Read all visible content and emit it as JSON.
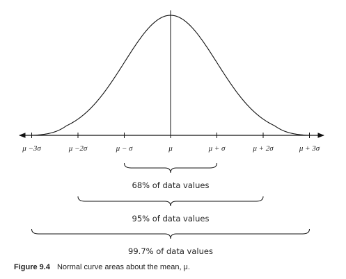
{
  "axis_labels": [
    "μ −3σ",
    "μ −2σ",
    "μ − σ",
    "μ",
    "μ + σ",
    "μ + 2σ",
    "μ + 3σ"
  ],
  "brackets": [
    {
      "label": "68% of data values"
    },
    {
      "label": "95% of data values"
    },
    {
      "label": "99.7% of data values"
    }
  ],
  "caption": {
    "figure": "Figure 9.4",
    "text": "Normal curve areas about the mean, μ."
  }
}
